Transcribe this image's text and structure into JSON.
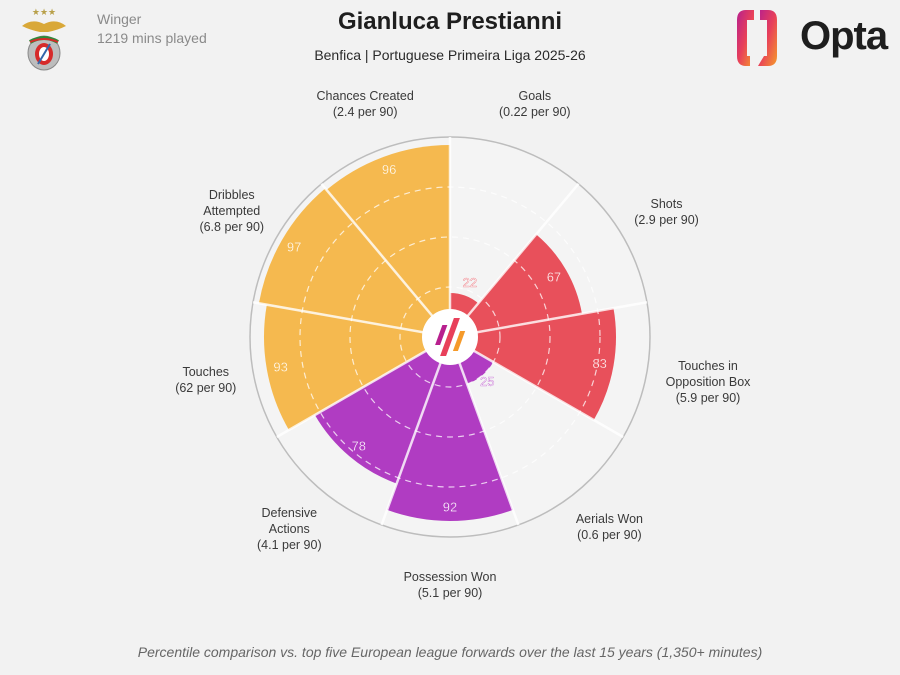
{
  "header": {
    "position": "Winger",
    "minutes": "1219 mins played",
    "player_name": "Gianluca Prestianni",
    "subtitle": "Benfica | Portuguese Primeira Liga 2025-26",
    "club_crest": "benfica-crest",
    "brand_logo": "Opta"
  },
  "chart_data": {
    "type": "pizza",
    "scale": "percentile",
    "rlim": [
      0,
      100
    ],
    "grid": "dashed rings",
    "categories": [
      {
        "name": "Goals",
        "per90": "(0.22 per 90)",
        "value": 22,
        "value_label": "22",
        "color": "#e8505b"
      },
      {
        "name": "Shots",
        "per90": "(2.9 per 90)",
        "value": 67,
        "value_label": "67",
        "color": "#e8505b"
      },
      {
        "name": "Touches in Opposition Box",
        "per90": "(5.9 per 90)",
        "value": 83,
        "value_label": "83",
        "color": "#e8505b"
      },
      {
        "name": "Aerials Won",
        "per90": "(0.6 per 90)",
        "value": 25,
        "value_label": "25",
        "color": "#b03cc2"
      },
      {
        "name": "Possession Won",
        "per90": "(5.1 per 90)",
        "value": 92,
        "value_label": "92",
        "color": "#b03cc2"
      },
      {
        "name": "Defensive Actions",
        "per90": "(4.1 per 90)",
        "value": 78,
        "value_label": "78",
        "color": "#b03cc2"
      },
      {
        "name": "Touches",
        "per90": "(62 per 90)",
        "value": 93,
        "value_label": "93",
        "color": "#f5b94f"
      },
      {
        "name": "Dribbles Attempted",
        "per90": "(6.8 per 90)",
        "value": 97,
        "value_label": "97",
        "color": "#f5b94f"
      },
      {
        "name": "Chances Created",
        "per90": "(2.4 per 90)",
        "value": 96,
        "value_label": "96",
        "color": "#f5b94f"
      }
    ]
  },
  "footer": {
    "note": "Percentile comparison vs. top five European league forwards over the last 15 years (1,350+ minutes)"
  }
}
